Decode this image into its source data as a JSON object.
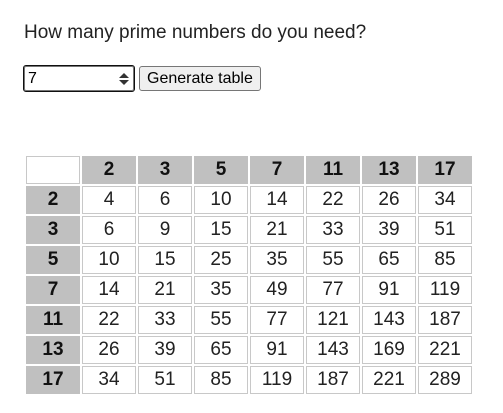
{
  "question": "How many prime numbers do you need?",
  "input": {
    "value": "7"
  },
  "button": {
    "label": "Generate table"
  },
  "colors": {
    "header_bg": "#c0c0c0",
    "cell_border": "#c8c8c8",
    "text": "#222222"
  },
  "table": {
    "corner": "",
    "headers": [
      "2",
      "3",
      "5",
      "7",
      "11",
      "13",
      "17"
    ],
    "rows": [
      {
        "label": "2",
        "cells": [
          "4",
          "6",
          "10",
          "14",
          "22",
          "26",
          "34"
        ]
      },
      {
        "label": "3",
        "cells": [
          "6",
          "9",
          "15",
          "21",
          "33",
          "39",
          "51"
        ]
      },
      {
        "label": "5",
        "cells": [
          "10",
          "15",
          "25",
          "35",
          "55",
          "65",
          "85"
        ]
      },
      {
        "label": "7",
        "cells": [
          "14",
          "21",
          "35",
          "49",
          "77",
          "91",
          "119"
        ]
      },
      {
        "label": "11",
        "cells": [
          "22",
          "33",
          "55",
          "77",
          "121",
          "143",
          "187"
        ]
      },
      {
        "label": "13",
        "cells": [
          "26",
          "39",
          "65",
          "91",
          "143",
          "169",
          "221"
        ]
      },
      {
        "label": "17",
        "cells": [
          "34",
          "51",
          "85",
          "119",
          "187",
          "221",
          "289"
        ]
      }
    ]
  }
}
